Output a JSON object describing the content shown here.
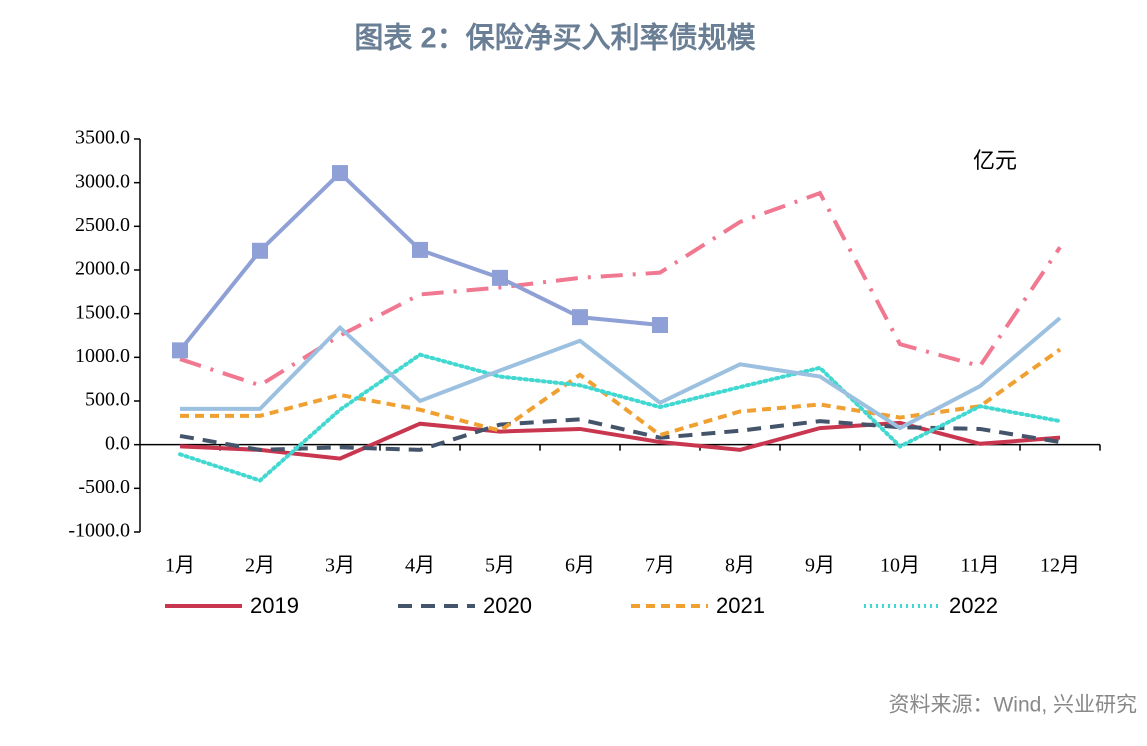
{
  "chart_data": {
    "type": "line",
    "title": "图表 2：保险净买入利率债规模",
    "unit_label": "亿元",
    "source": "资料来源：Wind, 兴业研究",
    "categories": [
      "1月",
      "2月",
      "3月",
      "4月",
      "5月",
      "6月",
      "7月",
      "8月",
      "9月",
      "10月",
      "11月",
      "12月"
    ],
    "ylim": [
      -1000,
      3500
    ],
    "yticks": [
      {
        "value": -1000,
        "label": "-1000.0"
      },
      {
        "value": -500,
        "label": "-500.0"
      },
      {
        "value": 0,
        "label": "0.0"
      },
      {
        "value": 500,
        "label": "500.0"
      },
      {
        "value": 1000,
        "label": "1000.0"
      },
      {
        "value": 1500,
        "label": "1500.0"
      },
      {
        "value": 2000,
        "label": "2000.0"
      },
      {
        "value": 2500,
        "label": "2500.0"
      },
      {
        "value": 3000,
        "label": "3000.0"
      },
      {
        "value": 3500,
        "label": "3500.0"
      }
    ],
    "series": [
      {
        "name": "2019",
        "color": "#c8374f",
        "style": "solid",
        "values": [
          -20,
          -60,
          -160,
          240,
          150,
          180,
          30,
          -60,
          190,
          250,
          10,
          80
        ]
      },
      {
        "name": "2020",
        "color": "#44546a",
        "style": "dashed",
        "values": [
          100,
          -60,
          -30,
          -60,
          230,
          290,
          80,
          160,
          270,
          200,
          180,
          30
        ]
      },
      {
        "name": "2021",
        "color": "#f0a030",
        "style": "short-dashed",
        "values": [
          330,
          330,
          570,
          400,
          160,
          800,
          110,
          380,
          460,
          310,
          440,
          1090
        ]
      },
      {
        "name": "2022",
        "color": "#40d8d0",
        "style": "dotted",
        "values": [
          -110,
          -410,
          400,
          1030,
          780,
          680,
          430,
          660,
          880,
          -20,
          440,
          270
        ]
      },
      {
        "color": "#f07890",
        "style": "dash-dot",
        "values": [
          980,
          680,
          1250,
          1720,
          1800,
          1910,
          1970,
          2550,
          2880,
          1150,
          900,
          2260
        ]
      },
      {
        "color": "#9cc0e0",
        "style": "solid",
        "values": [
          410,
          410,
          1340,
          500,
          850,
          1190,
          480,
          920,
          780,
          190,
          670,
          1450
        ]
      },
      {
        "color": "#8fa0d6",
        "style": "solid",
        "marker": "square",
        "values": [
          1080,
          2220,
          3110,
          2230,
          1910,
          1460,
          1370,
          null,
          null,
          null,
          null,
          null
        ]
      }
    ]
  }
}
